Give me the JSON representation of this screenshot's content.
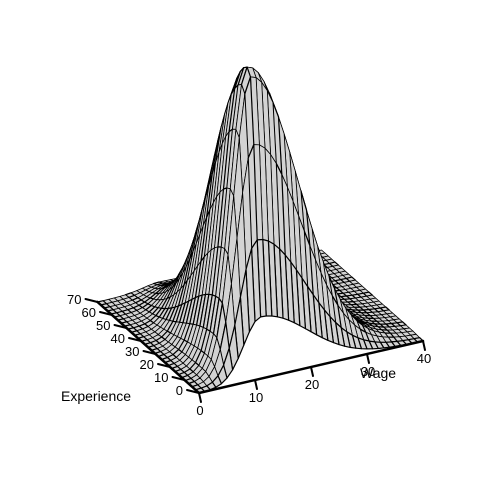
{
  "chart_data": {
    "type": "surface3d",
    "title": "",
    "xlabel": "Wage",
    "ylabel": "Experience",
    "zlabel": "",
    "x_ticks": [
      "0",
      "10",
      "20",
      "30",
      "40"
    ],
    "y_ticks": [
      "0",
      "10",
      "20",
      "30",
      "40",
      "50",
      "60",
      "70"
    ],
    "xlim": [
      0,
      40
    ],
    "ylim": [
      0,
      70
    ],
    "grid": {
      "nx": 40,
      "ny": 30
    },
    "mode": {
      "wage": 11,
      "experience": 8
    },
    "density_shape": "unimodal, peak near low experience and low-to-mid wage, long tail toward high experience",
    "colors": {
      "surface": "#d3d3d3",
      "mesh": "#000000",
      "axis": "#000000"
    }
  }
}
